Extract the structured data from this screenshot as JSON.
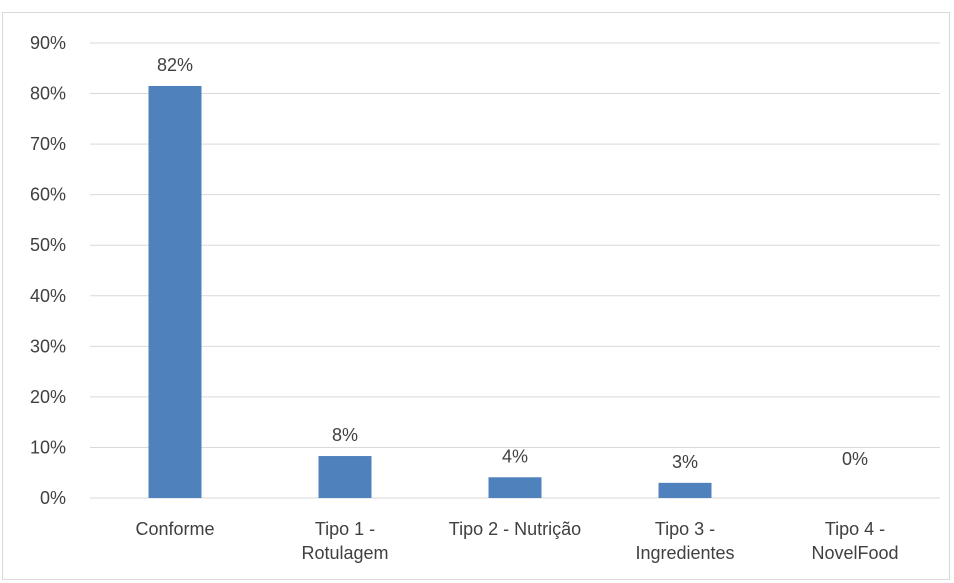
{
  "chart_data": {
    "type": "bar",
    "title": "",
    "xlabel": "",
    "ylabel": "",
    "categories": [
      [
        "Conforme"
      ],
      [
        "Tipo 1 -",
        "Rotulagem"
      ],
      [
        "Tipo 2 - Nutrição"
      ],
      [
        "Tipo 3 -",
        "Ingredientes"
      ],
      [
        "Tipo 4 -",
        "NovelFood"
      ]
    ],
    "values": [
      81.5,
      8.3,
      4.1,
      3.0,
      0.0
    ],
    "data_labels": [
      "82%",
      "8%",
      "4%",
      "3%",
      "0%"
    ],
    "ylim": [
      0,
      90
    ],
    "yticks": [
      0,
      10,
      20,
      30,
      40,
      50,
      60,
      70,
      80,
      90
    ],
    "ytick_labels": [
      "0%",
      "10%",
      "20%",
      "30%",
      "40%",
      "50%",
      "60%",
      "70%",
      "80%",
      "90%"
    ],
    "grid": true,
    "legend": "none",
    "colors": {
      "bar": "#4f81bd",
      "grid": "#d9d9d9",
      "text": "#404040"
    }
  }
}
